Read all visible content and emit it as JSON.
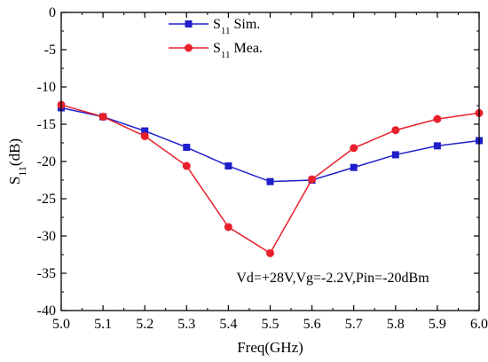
{
  "chart_data": {
    "type": "line",
    "xlabel": "Freq(GHz)",
    "ylabel": "S11(dB)",
    "xlim": [
      5.0,
      6.0
    ],
    "ylim": [
      -40,
      0
    ],
    "x_ticks": [
      5.0,
      5.1,
      5.2,
      5.3,
      5.4,
      5.5,
      5.6,
      5.7,
      5.8,
      5.9,
      6.0
    ],
    "x_tick_labels": [
      "5.0",
      "5.1",
      "5.2",
      "5.3",
      "5.4",
      "5.5",
      "5.6",
      "5.7",
      "5.8",
      "5.9",
      "6.0"
    ],
    "y_ticks": [
      0,
      -5,
      -10,
      -15,
      -20,
      -25,
      -30,
      -35,
      -40
    ],
    "y_tick_labels": [
      "0",
      "-5",
      "-10",
      "-15",
      "-20",
      "-25",
      "-30",
      "-35",
      "-40"
    ],
    "grid": false,
    "legend_position": "top-center",
    "annotation": "Vd=+28V,Vg=-2.2V,Pin=-20dBm",
    "x": [
      5.0,
      5.1,
      5.2,
      5.3,
      5.4,
      5.5,
      5.6,
      5.7,
      5.8,
      5.9,
      6.0
    ],
    "series": [
      {
        "name": "S11 Sim.",
        "name_base": "S",
        "name_sub": "11",
        "name_suffix": "Sim.",
        "color": "#1f1fcc",
        "marker": "square",
        "values": [
          -12.8,
          -14.0,
          -15.9,
          -18.1,
          -20.6,
          -22.7,
          -22.5,
          -20.8,
          -19.1,
          -17.9,
          -17.2
        ]
      },
      {
        "name": "S11 Mea.",
        "name_base": "S",
        "name_sub": "11",
        "name_suffix": "Mea.",
        "color": "#e8202a",
        "marker": "circle",
        "values": [
          -12.4,
          -14.0,
          -16.6,
          -20.6,
          -28.8,
          -32.3,
          -22.4,
          -18.2,
          -15.8,
          -14.3,
          -13.5
        ]
      }
    ]
  }
}
